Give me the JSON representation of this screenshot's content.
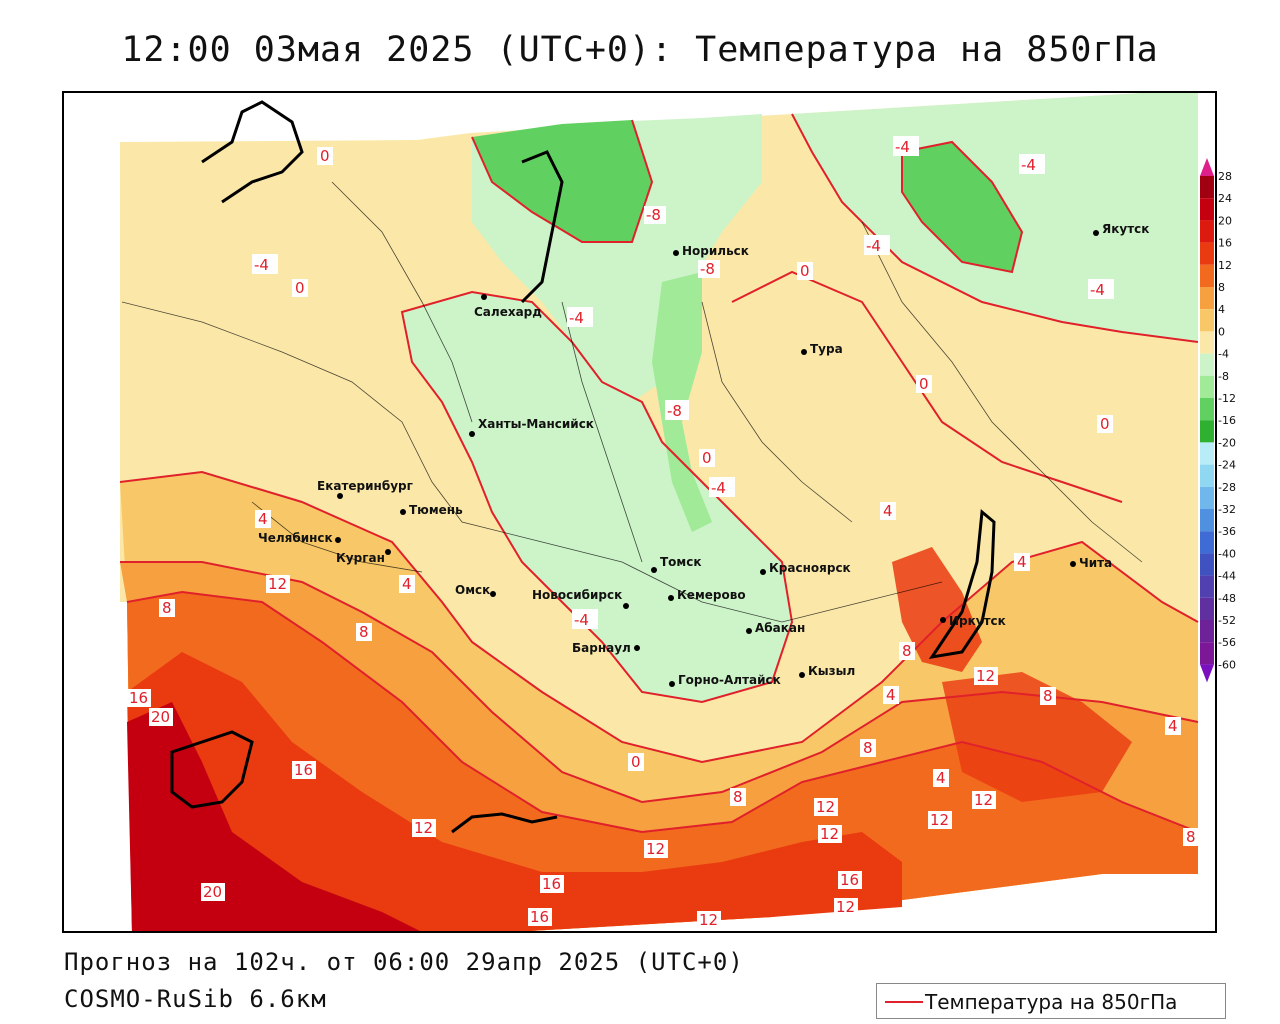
{
  "title": "12:00 03мая 2025 (UTC+0): Температура на 850гПа",
  "footer": {
    "forecast": "Прогноз на 102ч. от 06:00 29апр 2025 (UTC+0)",
    "model": "COSMO-RuSib 6.6км"
  },
  "legend": {
    "label": "Температура на 850гПа",
    "line_color": "#e0202a"
  },
  "colorbar": {
    "ticks": [
      "28",
      "24",
      "20",
      "16",
      "12",
      "8",
      "4",
      "0",
      "-4",
      "-8",
      "-12",
      "-16",
      "-20",
      "-24",
      "-28",
      "-32",
      "-36",
      "-40",
      "-44",
      "-48",
      "-52",
      "-56",
      "-60"
    ],
    "colors": [
      "#a00010",
      "#c40010",
      "#dc1a10",
      "#ea3a10",
      "#f26a1e",
      "#f6a040",
      "#f8c868",
      "#fbe8a8",
      "#cdf3c8",
      "#a0ea98",
      "#60d060",
      "#30b030",
      "#b8ecf6",
      "#90d8f2",
      "#70b8ec",
      "#5090e0",
      "#3f6cd4",
      "#4052c0",
      "#5040b0",
      "#6030a0",
      "#6e2298",
      "#7c1898"
    ]
  },
  "cities": [
    {
      "name": "Салехард"
    },
    {
      "name": "Норильск"
    },
    {
      "name": "Якутск"
    },
    {
      "name": "Тура"
    },
    {
      "name": "Ханты-Мансийск"
    },
    {
      "name": "Екатеринбург"
    },
    {
      "name": "Тюмень"
    },
    {
      "name": "Челябинск"
    },
    {
      "name": "Курган"
    },
    {
      "name": "Омск"
    },
    {
      "name": "Новосибирск"
    },
    {
      "name": "Томск"
    },
    {
      "name": "Кемерово"
    },
    {
      "name": "Красноярск"
    },
    {
      "name": "Барнаул"
    },
    {
      "name": "Абакан"
    },
    {
      "name": "Горно-Алтайск"
    },
    {
      "name": "Кызыл"
    },
    {
      "name": "Иркутск"
    },
    {
      "name": "Чита"
    }
  ],
  "contour_labels": [
    "0",
    "-8",
    "-4",
    "-8",
    "-4",
    "0",
    "-4",
    "0",
    "-4",
    "-4",
    "-8",
    "0",
    "-4",
    "0",
    "0",
    "4",
    "4",
    "4",
    "12",
    "8",
    "8",
    "16",
    "20",
    "16",
    "12",
    "12",
    "20",
    "16",
    "16",
    "12",
    "12",
    "12",
    "12",
    "16",
    "12",
    "0",
    "-4",
    "4",
    "8",
    "8",
    "8",
    "12",
    "-4",
    "4",
    "4",
    "12",
    "8",
    "4",
    "8"
  ]
}
